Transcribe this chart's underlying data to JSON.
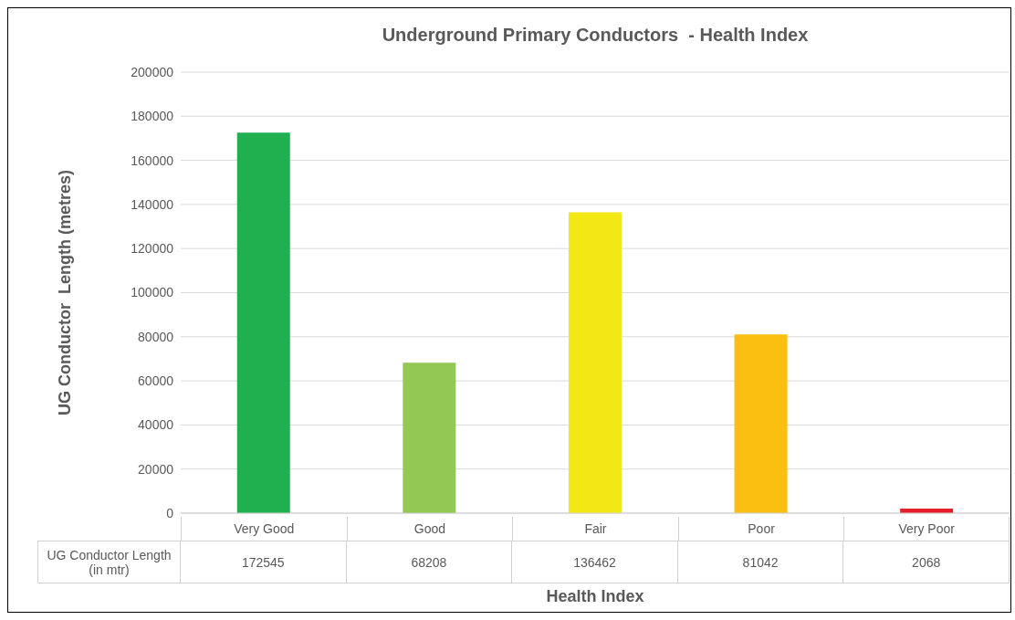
{
  "chart_data": {
    "type": "bar",
    "title": "Underground Primary Conductors  - Health Index",
    "xlabel": "Health Index",
    "ylabel": "UG Conductor  Length (metres)",
    "categories": [
      "Very Good",
      "Good",
      "Fair",
      "Poor",
      "Very Poor"
    ],
    "series": [
      {
        "name": "UG Conductor Length (in mtr)",
        "values": [
          172545,
          68208,
          136462,
          81042,
          2068
        ],
        "colors": [
          "#21b04f",
          "#92c853",
          "#f1e816",
          "#fbbf12",
          "#e5202a"
        ]
      }
    ],
    "ylim": [
      0,
      200000
    ],
    "yticks": [
      0,
      20000,
      40000,
      60000,
      80000,
      100000,
      120000,
      140000,
      160000,
      180000,
      200000
    ],
    "grid": "y",
    "data_labels": true
  }
}
